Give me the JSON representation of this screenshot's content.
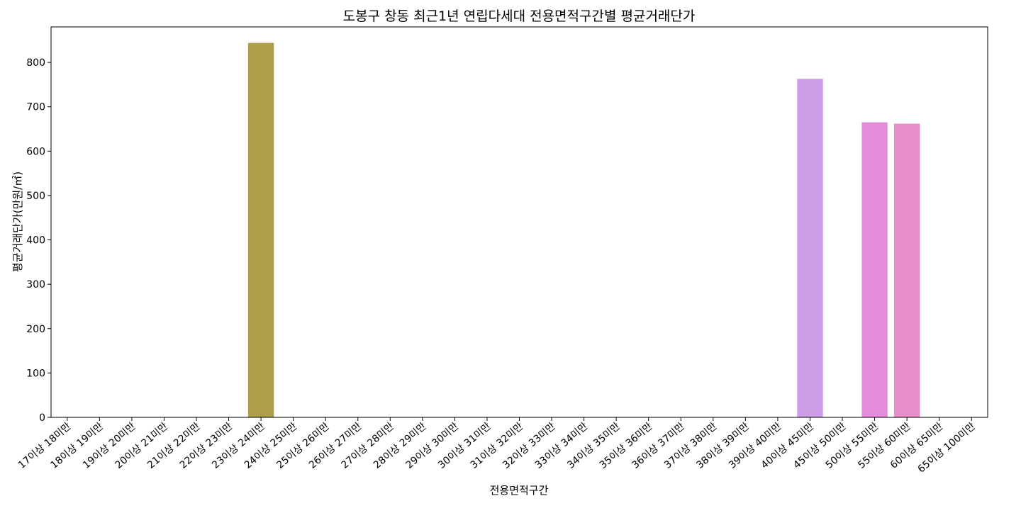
{
  "chart_data": {
    "type": "bar",
    "title": "도봉구 창동 최근1년 연립다세대 전용면적구간별 평균거래단가",
    "xlabel": "전용면적구간",
    "ylabel": "평균거래단가(만원/㎡)",
    "ylim": [
      0,
      880
    ],
    "yticks": [
      0,
      100,
      200,
      300,
      400,
      500,
      600,
      700,
      800
    ],
    "grid": false,
    "categories": [
      "17이상 18미만",
      "18이상 19미만",
      "19이상 20미만",
      "20이상 21미만",
      "21이상 22미만",
      "22이상 23미만",
      "23이상 24미만",
      "24이상 25미만",
      "25이상 26미만",
      "26이상 27미만",
      "27이상 28미만",
      "28이상 29미만",
      "29이상 30미만",
      "30이상 31미만",
      "31이상 32미만",
      "32이상 33미만",
      "33이상 34미만",
      "34이상 35미만",
      "35이상 36미만",
      "36이상 37미만",
      "37이상 38미만",
      "38이상 39미만",
      "39이상 40미만",
      "40이상 45미만",
      "45이상 50미만",
      "50이상 55미만",
      "55이상 60미만",
      "60이상 65미만",
      "65이상 100미만"
    ],
    "values": [
      0,
      0,
      0,
      0,
      0,
      0,
      844,
      0,
      0,
      0,
      0,
      0,
      0,
      0,
      0,
      0,
      0,
      0,
      0,
      0,
      0,
      0,
      0,
      763,
      0,
      665,
      662,
      0,
      0
    ],
    "bar_colors": {
      "6": "#ad9e47",
      "23": "#cc9ee6",
      "25": "#e68cdc",
      "26": "#e88dc9"
    }
  }
}
